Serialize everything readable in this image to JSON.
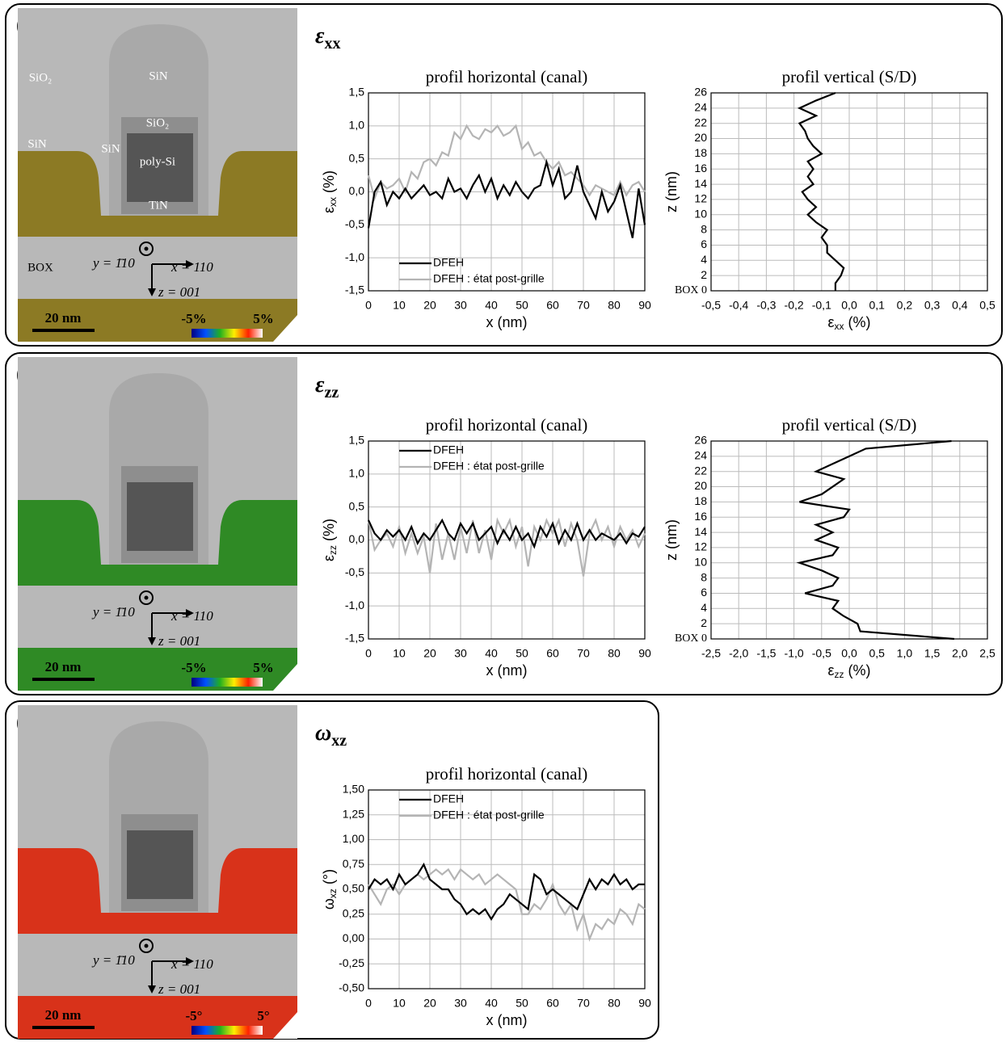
{
  "panels": [
    {
      "label": "(a)",
      "heading": [
        "ε",
        "xx"
      ],
      "materials": [
        "SiO₂",
        "SiN",
        "SiO₂",
        "SiN",
        "SiN",
        "poly-Si",
        "TiN",
        "BOX"
      ],
      "axes": [
        "y = 1̄10",
        "x = 110",
        "z = 001"
      ],
      "scale": "20 nm",
      "range": [
        "-5%",
        "5%"
      ]
    },
    {
      "label": "(b)",
      "heading": [
        "ε",
        "zz"
      ],
      "axes": [
        "y = 1̄10",
        "x = 110",
        "z = 001"
      ],
      "scale": "20 nm",
      "range": [
        "-5%",
        "5%"
      ]
    },
    {
      "label": "(c)",
      "heading": [
        "ω",
        "xz"
      ],
      "axes": [
        "y = 1̄10",
        "x = 110",
        "z = 001"
      ],
      "scale": "20 nm",
      "range": [
        "-5°",
        "5°"
      ]
    }
  ],
  "chart_data": [
    {
      "type": "line",
      "title": "profil horizontal (canal)",
      "x_label": "x (nm)",
      "y_label": [
        "ε",
        "xx",
        " (%)"
      ],
      "x": [
        0,
        2,
        4,
        6,
        8,
        10,
        12,
        14,
        16,
        18,
        20,
        22,
        24,
        26,
        28,
        30,
        32,
        34,
        36,
        38,
        40,
        42,
        44,
        46,
        48,
        50,
        52,
        54,
        56,
        58,
        60,
        62,
        64,
        66,
        68,
        70,
        72,
        74,
        76,
        78,
        80,
        82,
        84,
        86,
        88,
        90
      ],
      "series": [
        {
          "name": "DFEH",
          "color": "#000000",
          "values": [
            -0.55,
            0,
            0.15,
            -0.2,
            0,
            -0.1,
            0.05,
            -0.1,
            0,
            0.1,
            -0.05,
            0,
            -0.1,
            0.2,
            0,
            0.05,
            -0.1,
            0.1,
            0.25,
            0,
            0.2,
            -0.1,
            0.1,
            -0.05,
            0.15,
            0,
            -0.1,
            0.05,
            0.1,
            0.45,
            0.1,
            0.35,
            -0.1,
            0,
            0.4,
            0,
            -0.2,
            -0.4,
            0,
            -0.3,
            -0.15,
            0.1,
            -0.3,
            -0.7,
            0.05,
            -0.5
          ]
        },
        {
          "name": "DFEH : état post-grille",
          "color": "#b4b4b4",
          "values": [
            0.25,
            -0.1,
            0.15,
            0.05,
            0.1,
            0.2,
            0,
            0.3,
            0.2,
            0.45,
            0.5,
            0.4,
            0.6,
            0.55,
            0.9,
            0.8,
            1.0,
            0.85,
            0.8,
            0.95,
            0.9,
            1.0,
            0.85,
            0.9,
            1.0,
            0.65,
            0.75,
            0.55,
            0.6,
            0.45,
            0.35,
            0.45,
            0.25,
            0.3,
            0.2,
            0.1,
            -0.05,
            0.1,
            0.05,
            0,
            -0.05,
            0.15,
            -0.05,
            0.1,
            0.15,
            0
          ]
        }
      ],
      "xlim": [
        0,
        90
      ],
      "xticks": [
        0,
        10,
        20,
        30,
        40,
        50,
        60,
        70,
        80,
        90
      ],
      "ylim": [
        -1.5,
        1.5
      ],
      "yticks": [
        {
          "value": -1.5,
          "label": "-1,5"
        },
        {
          "value": -1.0,
          "label": "-1,0"
        },
        {
          "value": -0.5,
          "label": "-0,5"
        },
        {
          "value": 0,
          "label": "0,0"
        },
        {
          "value": 0.5,
          "label": "0,5"
        },
        {
          "value": 1.0,
          "label": "1,0"
        },
        {
          "value": 1.5,
          "label": "1,5"
        }
      ],
      "grid": true,
      "legend": "lower left"
    },
    {
      "type": "line",
      "title": "profil vertical (S/D)",
      "x_label": [
        "ε",
        "xx",
        " (%)"
      ],
      "y_label": "z (nm)",
      "z": [
        0,
        1,
        2,
        3,
        4,
        5,
        6,
        7,
        8,
        9,
        10,
        11,
        12,
        13,
        14,
        15,
        16,
        17,
        18,
        19,
        20,
        21,
        22,
        23,
        24,
        25,
        26
      ],
      "values": [
        -0.05,
        -0.05,
        -0.03,
        -0.02,
        -0.05,
        -0.08,
        -0.08,
        -0.1,
        -0.08,
        -0.12,
        -0.15,
        -0.12,
        -0.15,
        -0.17,
        -0.13,
        -0.15,
        -0.13,
        -0.15,
        -0.1,
        -0.13,
        -0.15,
        -0.16,
        -0.18,
        -0.12,
        -0.18,
        -0.12,
        -0.05
      ],
      "color": "#000000",
      "xlim": [
        -0.5,
        0.5
      ],
      "xticks": [
        {
          "value": -0.5,
          "label": "-0,5"
        },
        {
          "value": -0.4,
          "label": "-0,4"
        },
        {
          "value": -0.3,
          "label": "-0,3"
        },
        {
          "value": -0.2,
          "label": "-0,2"
        },
        {
          "value": -0.1,
          "label": "-0,1"
        },
        {
          "value": 0,
          "label": "0,0"
        },
        {
          "value": 0.1,
          "label": "0,1"
        },
        {
          "value": 0.2,
          "label": "0,2"
        },
        {
          "value": 0.3,
          "label": "0,3"
        },
        {
          "value": 0.4,
          "label": "0,4"
        },
        {
          "value": 0.5,
          "label": "0,5"
        }
      ],
      "ylim": [
        0,
        26
      ],
      "yticks": [
        {
          "value": 0,
          "label": "BOX 0"
        },
        2,
        4,
        6,
        8,
        10,
        12,
        14,
        16,
        18,
        20,
        22,
        24,
        26
      ],
      "grid": true
    },
    {
      "type": "line",
      "title": "profil horizontal (canal)",
      "x_label": "x (nm)",
      "y_label": [
        "ε",
        "zz",
        " (%)"
      ],
      "x": [
        0,
        2,
        4,
        6,
        8,
        10,
        12,
        14,
        16,
        18,
        20,
        22,
        24,
        26,
        28,
        30,
        32,
        34,
        36,
        38,
        40,
        42,
        44,
        46,
        48,
        50,
        52,
        54,
        56,
        58,
        60,
        62,
        64,
        66,
        68,
        70,
        72,
        74,
        76,
        78,
        80,
        82,
        84,
        86,
        88,
        90
      ],
      "series": [
        {
          "name": "DFEH",
          "color": "#000000",
          "values": [
            0.3,
            0.1,
            0,
            0.15,
            0.05,
            0.15,
            0,
            0.2,
            -0.05,
            0.1,
            0,
            0.15,
            0.3,
            0.1,
            0,
            0.25,
            0.1,
            0.25,
            0,
            0.1,
            0.2,
            -0.05,
            0.15,
            0,
            0.2,
            0,
            0.1,
            -0.1,
            0.2,
            0.05,
            0.25,
            -0.05,
            0.15,
            0,
            0.25,
            0,
            0.15,
            0,
            0.1,
            0.05,
            0,
            0.1,
            -0.05,
            0.1,
            0.05,
            0.2
          ]
        },
        {
          "name": "DFEH : état post-grille",
          "color": "#b4b4b4",
          "values": [
            0.3,
            -0.15,
            0,
            0.1,
            -0.1,
            0.2,
            -0.2,
            0.1,
            -0.2,
            0.05,
            -0.5,
            0.25,
            -0.3,
            0.1,
            -0.3,
            0.2,
            -0.2,
            0.3,
            -0.2,
            0.15,
            -0.3,
            0.3,
            0.1,
            0.3,
            -0.1,
            0.2,
            -0.4,
            0.2,
            0,
            0.3,
            0.1,
            0.3,
            -0.1,
            0.25,
            0,
            -0.55,
            0.1,
            0.3,
            0,
            0.2,
            -0.1,
            0.2,
            0,
            0.15,
            -0.1,
            0.1
          ]
        }
      ],
      "xlim": [
        0,
        90
      ],
      "xticks": [
        0,
        10,
        20,
        30,
        40,
        50,
        60,
        70,
        80,
        90
      ],
      "ylim": [
        -1.5,
        1.5
      ],
      "yticks": [
        {
          "value": -1.5,
          "label": "-1,5"
        },
        {
          "value": -1.0,
          "label": "-1,0"
        },
        {
          "value": -0.5,
          "label": "-0,5"
        },
        {
          "value": 0,
          "label": "0,0"
        },
        {
          "value": 0.5,
          "label": "0,5"
        },
        {
          "value": 1.0,
          "label": "1,0"
        },
        {
          "value": 1.5,
          "label": "1,5"
        }
      ],
      "grid": true,
      "legend": "upper left"
    },
    {
      "type": "line",
      "title": "profil vertical (S/D)",
      "x_label": [
        "ε",
        "zz",
        " (%)"
      ],
      "y_label": "z (nm)",
      "z": [
        0,
        1,
        2,
        3,
        4,
        5,
        6,
        7,
        8,
        9,
        10,
        11,
        12,
        13,
        14,
        15,
        16,
        17,
        18,
        19,
        20,
        21,
        22,
        23,
        24,
        25,
        26
      ],
      "values": [
        1.9,
        0.2,
        0.15,
        -0.1,
        -0.3,
        -0.2,
        -0.8,
        -0.3,
        -0.2,
        -0.5,
        -0.9,
        -0.3,
        -0.2,
        -0.6,
        -0.3,
        -0.6,
        -0.1,
        0,
        -0.9,
        -0.5,
        -0.3,
        -0.1,
        -0.6,
        -0.3,
        0,
        0.3,
        1.85
      ],
      "color": "#000000",
      "xlim": [
        -2.5,
        2.5
      ],
      "xticks": [
        {
          "value": -2.5,
          "label": "-2,5"
        },
        {
          "value": -2.0,
          "label": "-2,0"
        },
        {
          "value": -1.5,
          "label": "-1,5"
        },
        {
          "value": -1.0,
          "label": "-1,0"
        },
        {
          "value": -0.5,
          "label": "-0,5"
        },
        {
          "value": 0,
          "label": "0,0"
        },
        {
          "value": 0.5,
          "label": "0,5"
        },
        {
          "value": 1.0,
          "label": "1,0"
        },
        {
          "value": 1.5,
          "label": "1,5"
        },
        {
          "value": 2.0,
          "label": "2,0"
        },
        {
          "value": 2.5,
          "label": "2,5"
        }
      ],
      "ylim": [
        0,
        26
      ],
      "yticks": [
        {
          "value": 0,
          "label": "BOX 0"
        },
        2,
        4,
        6,
        8,
        10,
        12,
        14,
        16,
        18,
        20,
        22,
        24,
        26
      ],
      "grid": true
    },
    {
      "type": "line",
      "title": "profil horizontal (canal)",
      "x_label": "x (nm)",
      "y_label": [
        "ω",
        "xz",
        " (°)"
      ],
      "x": [
        0,
        2,
        4,
        6,
        8,
        10,
        12,
        14,
        16,
        18,
        20,
        22,
        24,
        26,
        28,
        30,
        32,
        34,
        36,
        38,
        40,
        42,
        44,
        46,
        48,
        50,
        52,
        54,
        56,
        58,
        60,
        62,
        64,
        66,
        68,
        70,
        72,
        74,
        76,
        78,
        80,
        82,
        84,
        86,
        88,
        90
      ],
      "series": [
        {
          "name": "DFEH",
          "color": "#000000",
          "values": [
            0.5,
            0.6,
            0.55,
            0.6,
            0.5,
            0.65,
            0.55,
            0.6,
            0.65,
            0.75,
            0.6,
            0.55,
            0.5,
            0.5,
            0.4,
            0.35,
            0.25,
            0.3,
            0.25,
            0.3,
            0.2,
            0.3,
            0.35,
            0.45,
            0.4,
            0.35,
            0.3,
            0.65,
            0.6,
            0.45,
            0.5,
            0.45,
            0.4,
            0.35,
            0.3,
            0.45,
            0.6,
            0.5,
            0.6,
            0.55,
            0.65,
            0.55,
            0.6,
            0.5,
            0.55,
            0.55
          ]
        },
        {
          "name": "DFEH : état post-grille",
          "color": "#b4b4b4",
          "values": [
            0.55,
            0.45,
            0.35,
            0.5,
            0.55,
            0.45,
            0.55,
            0.6,
            0.65,
            0.6,
            0.65,
            0.7,
            0.65,
            0.7,
            0.6,
            0.7,
            0.65,
            0.6,
            0.65,
            0.55,
            0.6,
            0.65,
            0.6,
            0.55,
            0.5,
            0.25,
            0.25,
            0.35,
            0.3,
            0.4,
            0.55,
            0.35,
            0.25,
            0.35,
            0.1,
            0.25,
            0,
            0.15,
            0.1,
            0.2,
            0.15,
            0.3,
            0.25,
            0.15,
            0.35,
            0.3
          ]
        }
      ],
      "xlim": [
        0,
        90
      ],
      "xticks": [
        0,
        10,
        20,
        30,
        40,
        50,
        60,
        70,
        80,
        90
      ],
      "ylim": [
        -0.5,
        1.5
      ],
      "yticks": [
        {
          "value": -0.5,
          "label": "-0,50"
        },
        {
          "value": -0.25,
          "label": "-0,25"
        },
        {
          "value": 0,
          "label": "0,00"
        },
        {
          "value": 0.25,
          "label": "0,25"
        },
        {
          "value": 0.5,
          "label": "0,50"
        },
        {
          "value": 0.75,
          "label": "0,75"
        },
        {
          "value": 1.0,
          "label": "1,00"
        },
        {
          "value": 1.25,
          "label": "1,25"
        },
        {
          "value": 1.5,
          "label": "1,50"
        }
      ],
      "grid": true,
      "legend": "upper left"
    }
  ]
}
